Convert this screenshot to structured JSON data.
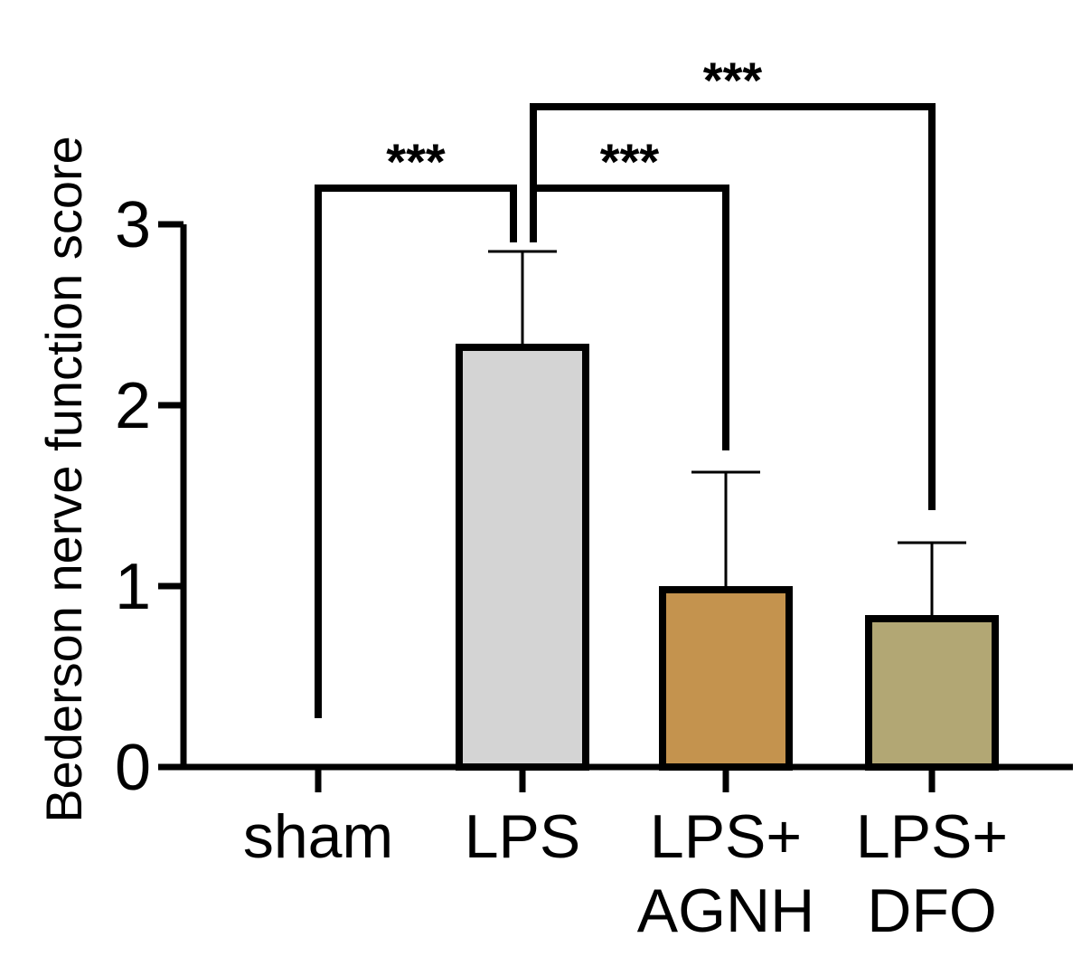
{
  "chart_data": {
    "type": "bar",
    "ylabel": "Bederson nerve function score",
    "xlabel": "",
    "ylim": [
      0,
      3
    ],
    "yticks": [
      "0",
      "1",
      "2",
      "3"
    ],
    "categories": [
      {
        "lines": [
          "sham"
        ]
      },
      {
        "lines": [
          "LPS"
        ]
      },
      {
        "lines": [
          "LPS+",
          "AGNH"
        ]
      },
      {
        "lines": [
          "LPS+",
          "DFO"
        ]
      }
    ],
    "values": [
      0,
      2.32,
      0.98,
      0.82
    ],
    "errors": [
      0,
      0.53,
      0.65,
      0.42
    ],
    "colors": [
      "#ffffff",
      "#d4d4d4",
      "#c4934e",
      "#b2a774"
    ],
    "significance": [
      {
        "from": 0,
        "to": 1,
        "label": "***",
        "start_values": [
          0.27,
          2.9
        ],
        "bracket_top": 3.2
      },
      {
        "from": 1,
        "to": 2,
        "label": "***",
        "start_values": [
          2.9,
          1.75
        ],
        "bracket_top": 3.2
      },
      {
        "from": 1,
        "to": 3,
        "label": "***",
        "start_values": [
          2.9,
          1.42
        ],
        "bracket_top": 3.65
      }
    ]
  }
}
